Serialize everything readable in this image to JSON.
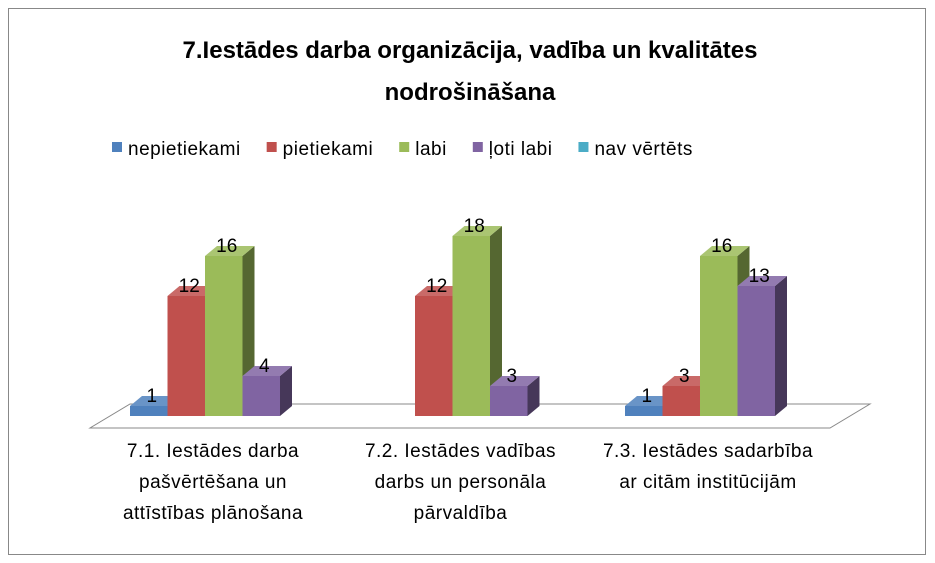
{
  "chart_data": {
    "type": "bar3d",
    "title": "7.Iestādes darba organizācija, vadība un kvalitātes nodrošināšana",
    "categories": [
      "7.1. Iestādes darba pašvērtēšana un attīstības plānošana",
      "7.2. Iestādes vadības darbs un personāla pārvaldība",
      "7.3. Iestādes sadarbība ar citām institūcijām"
    ],
    "series": [
      {
        "name": "nepietiekami",
        "color": "#4f81bd",
        "values": [
          1,
          null,
          1
        ]
      },
      {
        "name": "pietiekami",
        "color": "#c0504d",
        "values": [
          12,
          12,
          3
        ]
      },
      {
        "name": "labi",
        "color": "#9bbb59",
        "values": [
          16,
          18,
          16
        ]
      },
      {
        "name": "ļoti labi",
        "color": "#8064a2",
        "values": [
          4,
          3,
          13
        ]
      },
      {
        "name": "nav vērtēts",
        "color": "#4bacc6",
        "values": [
          null,
          null,
          null
        ]
      }
    ],
    "legend": "top"
  }
}
